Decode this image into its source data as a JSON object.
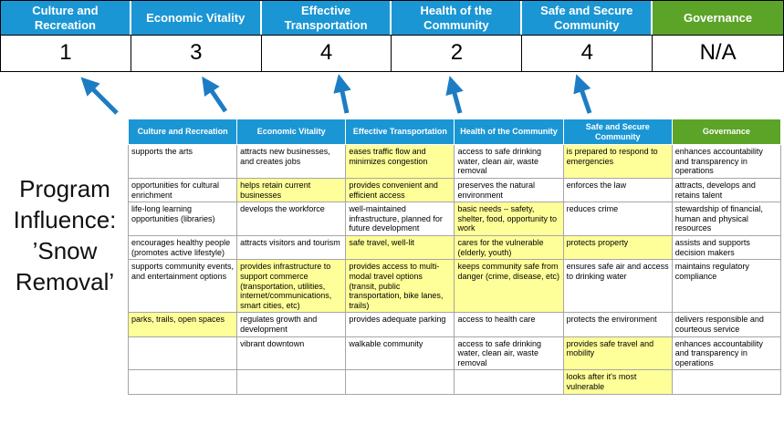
{
  "colors": {
    "header_blue": "#1b96d4",
    "header_green": "#5ba428",
    "highlight_yellow": "#ffff99",
    "arrow_blue": "#1d7dc4"
  },
  "program_label": "Program\nInfluence:\n’Snow\nRemoval’",
  "scoreboard": {
    "columns": [
      {
        "label": "Culture and Recreation",
        "score": "1",
        "theme": "blue"
      },
      {
        "label": "Economic Vitality",
        "score": "3",
        "theme": "blue"
      },
      {
        "label": "Effective Transportation",
        "score": "4",
        "theme": "blue"
      },
      {
        "label": "Health of the Community",
        "score": "2",
        "theme": "blue"
      },
      {
        "label": "Safe and Secure Community",
        "score": "4",
        "theme": "blue"
      },
      {
        "label": "Governance",
        "score": "N/A",
        "theme": "green"
      }
    ]
  },
  "table": {
    "headers": [
      {
        "label": "Culture and Recreation",
        "theme": "blue"
      },
      {
        "label": "Economic Vitality",
        "theme": "blue"
      },
      {
        "label": "Effective Transportation",
        "theme": "blue"
      },
      {
        "label": "Health of the Community",
        "theme": "blue"
      },
      {
        "label": "Safe and Secure Community",
        "theme": "blue"
      },
      {
        "label": "Governance",
        "theme": "green"
      }
    ],
    "rows": [
      [
        {
          "t": "supports the arts",
          "h": false
        },
        {
          "t": "attracts new businesses, and creates jobs",
          "h": false
        },
        {
          "t": "eases traffic flow and minimizes congestion",
          "h": true
        },
        {
          "t": "access to safe drinking water, clean air, waste removal",
          "h": false
        },
        {
          "t": "is prepared to respond to emergencies",
          "h": true
        },
        {
          "t": "enhances accountability and transparency in operations",
          "h": false
        }
      ],
      [
        {
          "t": "opportunities for cultural enrichment",
          "h": false
        },
        {
          "t": "helps retain current businesses",
          "h": true
        },
        {
          "t": "provides convenient and efficient access",
          "h": true
        },
        {
          "t": "preserves the natural environment",
          "h": false
        },
        {
          "t": "enforces the law",
          "h": false
        },
        {
          "t": "attracts, develops and retains talent",
          "h": false
        }
      ],
      [
        {
          "t": "life-long learning opportunities (libraries)",
          "h": false
        },
        {
          "t": "develops the workforce",
          "h": false
        },
        {
          "t": "well-maintained infrastructure, planned for future development",
          "h": false
        },
        {
          "t": "basic needs – safety, shelter, food, opportunity to work",
          "h": true
        },
        {
          "t": "reduces crime",
          "h": false
        },
        {
          "t": "stewardship of financial, human and physical resources",
          "h": false
        }
      ],
      [
        {
          "t": "encourages healthy people (promotes active lifestyle)",
          "h": false
        },
        {
          "t": "attracts visitors and tourism",
          "h": false
        },
        {
          "t": "safe travel, well-lit",
          "h": true
        },
        {
          "t": "cares for the vulnerable (elderly, youth)",
          "h": true
        },
        {
          "t": "protects property",
          "h": true
        },
        {
          "t": "assists and supports decision makers",
          "h": false
        }
      ],
      [
        {
          "t": "supports community events, and entertainment options",
          "h": false
        },
        {
          "t": "provides infrastructure to support commerce (transportation, utilities, internet/communications, smart cities, etc)",
          "h": true
        },
        {
          "t": "provides access to multi-modal travel options (transit, public transportation, bike lanes, trails)",
          "h": true
        },
        {
          "t": "keeps community safe from danger (crime, disease, etc)",
          "h": true
        },
        {
          "t": "ensures safe air and access to drinking water",
          "h": false
        },
        {
          "t": "maintains regulatory compliance",
          "h": false
        }
      ],
      [
        {
          "t": "parks, trails, open spaces",
          "h": true
        },
        {
          "t": "regulates growth and development",
          "h": false
        },
        {
          "t": "provides adequate parking",
          "h": false
        },
        {
          "t": "access to health care",
          "h": false
        },
        {
          "t": "protects the environment",
          "h": false
        },
        {
          "t": "delivers responsible and courteous service",
          "h": false
        }
      ],
      [
        {
          "t": "",
          "h": false
        },
        {
          "t": "vibrant downtown",
          "h": false
        },
        {
          "t": "walkable community",
          "h": false
        },
        {
          "t": "access to safe drinking water, clean air, waste removal",
          "h": false
        },
        {
          "t": "provides safe travel and mobility",
          "h": true
        },
        {
          "t": "enhances accountability and transparency in operations",
          "h": false
        }
      ],
      [
        {
          "t": "",
          "h": false
        },
        {
          "t": "",
          "h": false
        },
        {
          "t": "",
          "h": false
        },
        {
          "t": "",
          "h": false
        },
        {
          "t": "looks after it's most vulnerable",
          "h": true
        },
        {
          "t": "",
          "h": false
        }
      ]
    ]
  }
}
